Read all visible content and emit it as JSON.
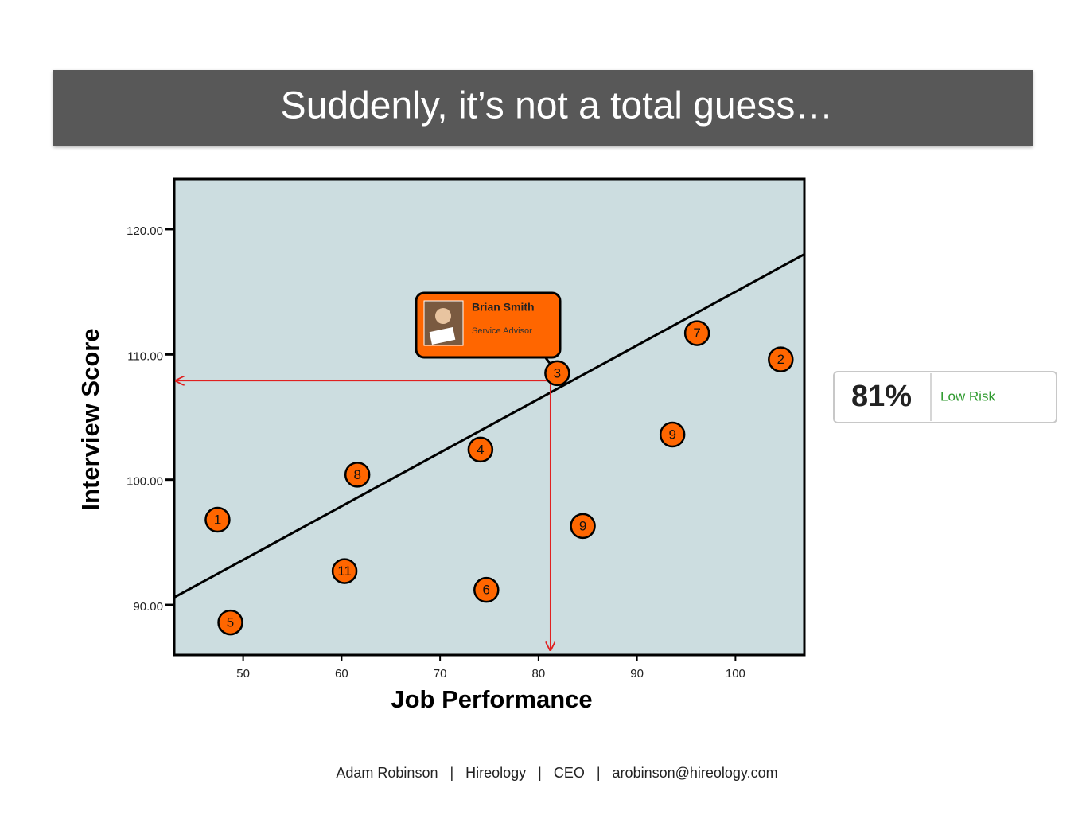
{
  "slide_title": "Suddenly, it’s not a total guess…",
  "chart_data": {
    "type": "scatter",
    "x_label": "Job Performance",
    "y_label": "Interview Score",
    "xlim": [
      43,
      107
    ],
    "ylim": [
      86,
      124
    ],
    "xticks": [
      50,
      60,
      70,
      80,
      90,
      100
    ],
    "yticks": [
      {
        "value": 90,
        "label": "90.00"
      },
      {
        "value": 100,
        "label": "100.00"
      },
      {
        "value": 110,
        "label": "110.00"
      },
      {
        "value": 120,
        "label": "120.00"
      }
    ],
    "color": "#ff6600",
    "background": "#ccdde0",
    "x": [
      47.4,
      48.7,
      61.6,
      60.3,
      74.1,
      74.7,
      81.9,
      84.5,
      93.6,
      96.1,
      104.6
    ],
    "values": [
      96.8,
      88.6,
      100.4,
      92.7,
      102.4,
      91.2,
      108.5,
      96.3,
      103.6,
      111.7,
      109.6
    ],
    "point_labels": [
      "1",
      "5",
      "8",
      "11",
      "4",
      "6",
      "3",
      "9",
      "9",
      "7",
      "2"
    ],
    "trend_line": {
      "x": [
        43,
        107
      ],
      "y": [
        90.6,
        118.0
      ]
    },
    "guide": {
      "x": 81.2,
      "y": 107.9
    },
    "callout": {
      "name": "Brian Smith",
      "role": "Service Advisor"
    }
  },
  "score_box": {
    "score": "81%",
    "risk": "Low Risk"
  },
  "footer": "Adam Robinson   |   Hireology   |   CEO   |   arobinson@hireology.com"
}
